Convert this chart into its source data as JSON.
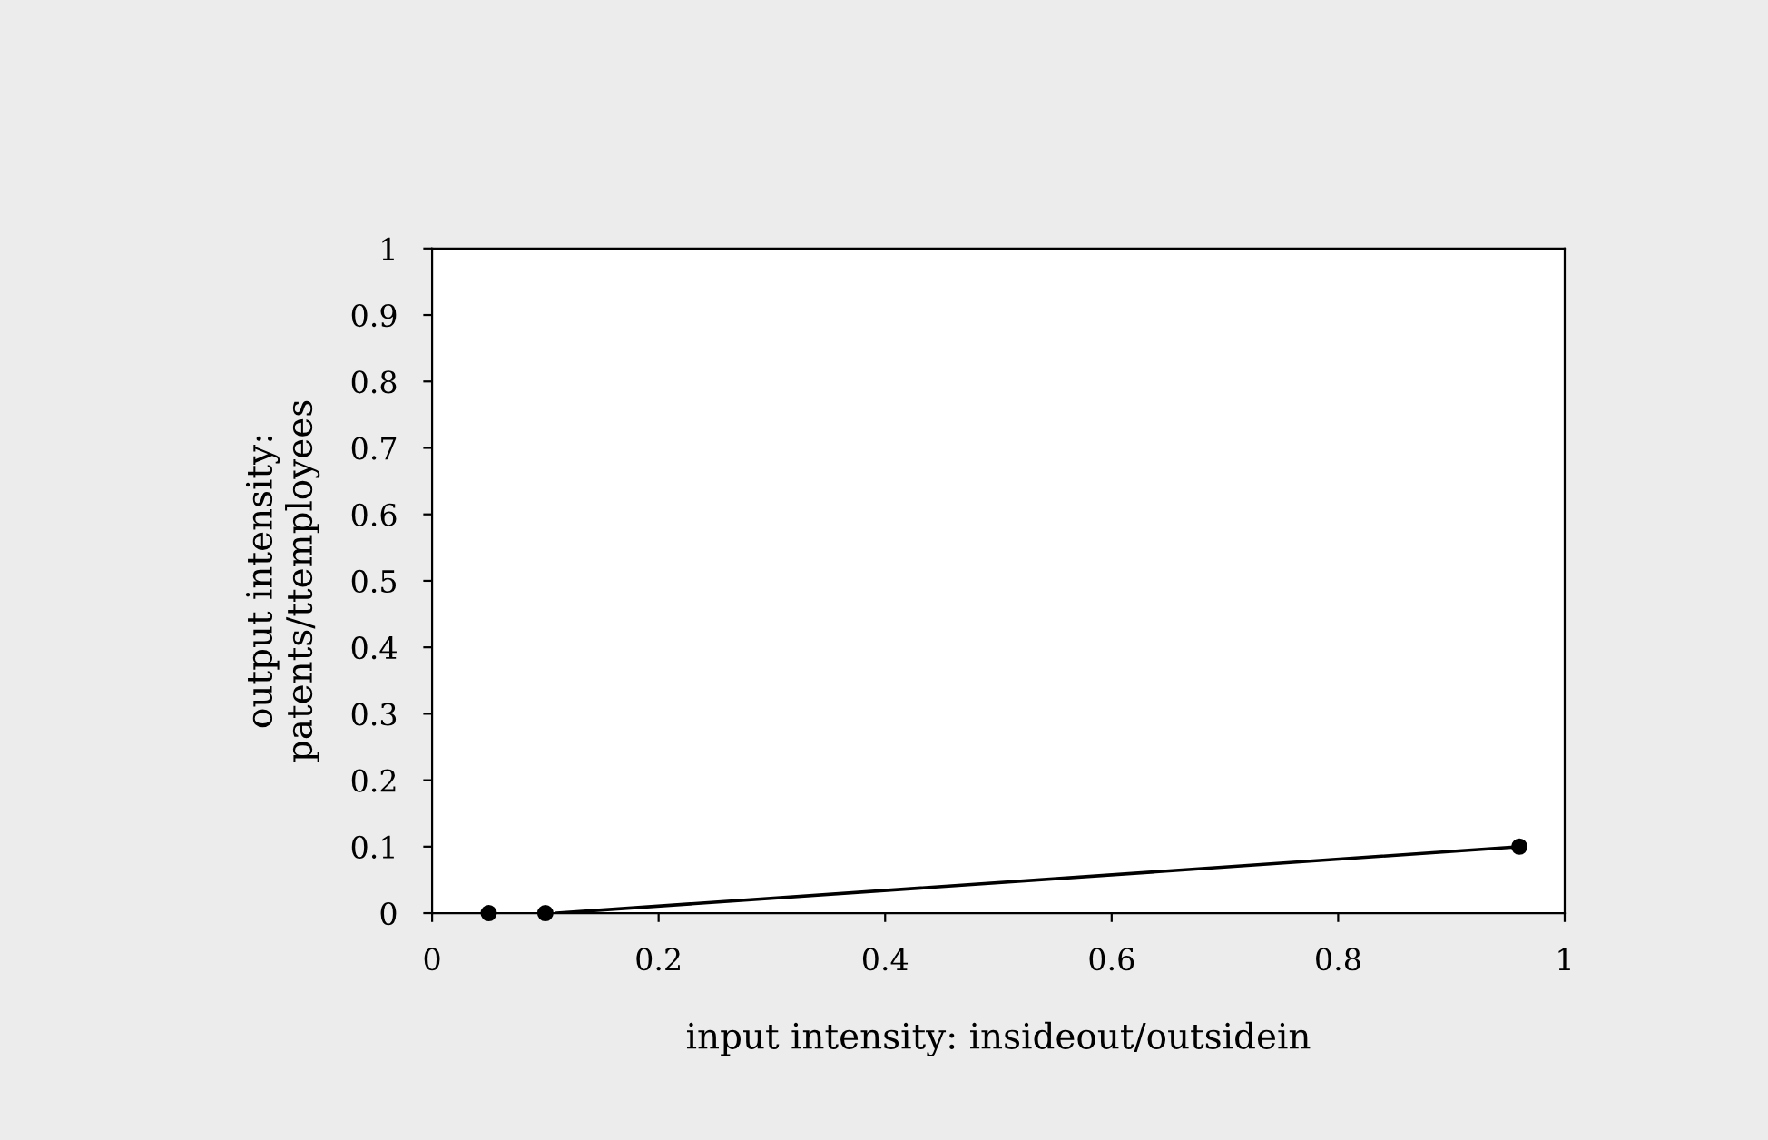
{
  "chart_data": {
    "type": "scatter",
    "xlabel": "input intensity: insideout/outsidein",
    "ylabel": "output intensity:\npatents/ttemployees",
    "xlim": [
      0,
      1
    ],
    "ylim": [
      0,
      1
    ],
    "xticks": [
      0,
      0.2,
      0.4,
      0.6,
      0.8,
      1
    ],
    "yticks": [
      0,
      0.1,
      0.2,
      0.3,
      0.4,
      0.5,
      0.6,
      0.7,
      0.8,
      0.9,
      1
    ],
    "grid": false,
    "series": [
      {
        "color": "#000000",
        "marker": "circle",
        "x": [
          0.05,
          0.1,
          0.96
        ],
        "values": [
          0,
          0,
          0.1
        ]
      },
      {
        "type": "line",
        "marker": "none",
        "color": "#000000",
        "x": [
          0.11,
          0.96
        ],
        "values": [
          0,
          0.1
        ]
      }
    ]
  }
}
